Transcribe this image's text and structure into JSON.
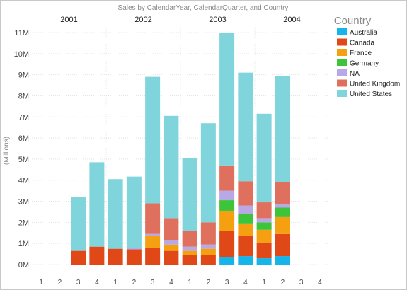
{
  "chart_data": {
    "type": "bar",
    "stacked": true,
    "title": "Sales by CalendarYear, CalendarQuarter, and Country",
    "ylabel": "(Millions)",
    "ylim": [
      0,
      11
    ],
    "yticks": [
      "0M",
      "1M",
      "2M",
      "3M",
      "4M",
      "5M",
      "6M",
      "7M",
      "8M",
      "9M",
      "10M",
      "11M"
    ],
    "legend_title": "Country",
    "legend_position": "right",
    "groups": [
      "2001",
      "2002",
      "2003",
      "2004"
    ],
    "categories": [
      "1",
      "2",
      "3",
      "4"
    ],
    "series": [
      {
        "name": "Australia",
        "color": "#16b4e8",
        "values": [
          [
            0,
            0,
            0,
            0
          ],
          [
            0,
            0,
            0,
            0
          ],
          [
            0,
            0,
            0.35,
            0.4
          ],
          [
            0.3,
            0.4,
            0,
            0
          ]
        ]
      },
      {
        "name": "Canada",
        "color": "#e04818",
        "values": [
          [
            0,
            0,
            0.65,
            0.85
          ],
          [
            0.75,
            0.72,
            0.8,
            0.65
          ],
          [
            0.45,
            0.45,
            1.25,
            0.95
          ],
          [
            0.75,
            1.05,
            0,
            0
          ]
        ]
      },
      {
        "name": "France",
        "color": "#f5a010",
        "values": [
          [
            0,
            0,
            0,
            0
          ],
          [
            0,
            0,
            0.55,
            0.3
          ],
          [
            0.2,
            0.3,
            0.95,
            0.6
          ],
          [
            0.6,
            0.8,
            0,
            0
          ]
        ]
      },
      {
        "name": "Germany",
        "color": "#3ec43a",
        "values": [
          [
            0,
            0,
            0,
            0
          ],
          [
            0,
            0,
            0,
            0
          ],
          [
            0,
            0,
            0.5,
            0.45
          ],
          [
            0.35,
            0.45,
            0,
            0
          ]
        ]
      },
      {
        "name": "NA",
        "color": "#b8a8e6",
        "values": [
          [
            0,
            0,
            0,
            0
          ],
          [
            0,
            0.05,
            0.1,
            0.2
          ],
          [
            0.2,
            0.2,
            0.45,
            0.4
          ],
          [
            0.2,
            0.15,
            0,
            0
          ]
        ]
      },
      {
        "name": "United Kingdom",
        "color": "#e0705e",
        "values": [
          [
            0,
            0,
            0,
            0
          ],
          [
            0,
            0,
            1.45,
            1.05
          ],
          [
            0.75,
            1.05,
            1.2,
            1.15
          ],
          [
            0.75,
            1.05,
            0,
            0
          ]
        ]
      },
      {
        "name": "United States",
        "color": "#80d4dc",
        "values": [
          [
            0,
            0,
            2.55,
            4.0
          ],
          [
            3.3,
            3.4,
            6.0,
            4.85
          ],
          [
            3.45,
            4.7,
            6.3,
            5.15
          ],
          [
            4.2,
            5.05,
            0,
            0
          ]
        ]
      }
    ]
  }
}
